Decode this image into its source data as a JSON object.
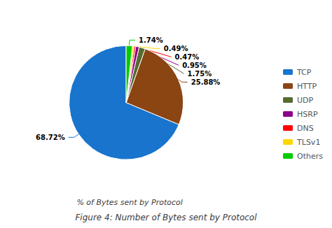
{
  "chart_data": {
    "type": "pie",
    "title": "% of Bytes sent by Protocol",
    "caption": "Figure 4: Number of Bytes sent by Protocol",
    "categories": [
      "TCP",
      "HTTP",
      "UDP",
      "HSRP",
      "DNS",
      "TLSv1",
      "Others"
    ],
    "values": [
      68.72,
      25.88,
      1.75,
      0.95,
      0.47,
      0.49,
      1.74
    ],
    "value_labels": [
      "68.72%",
      "25.88%",
      "1.75%",
      "0.95%",
      "0.47%",
      "0.49%",
      "1.74%"
    ],
    "colors": [
      "#1874CD",
      "#8B4513",
      "#556B2F",
      "#8B008B",
      "#FF0000",
      "#FFD700",
      "#00CC00"
    ],
    "data_labels": true,
    "legend": "right"
  }
}
